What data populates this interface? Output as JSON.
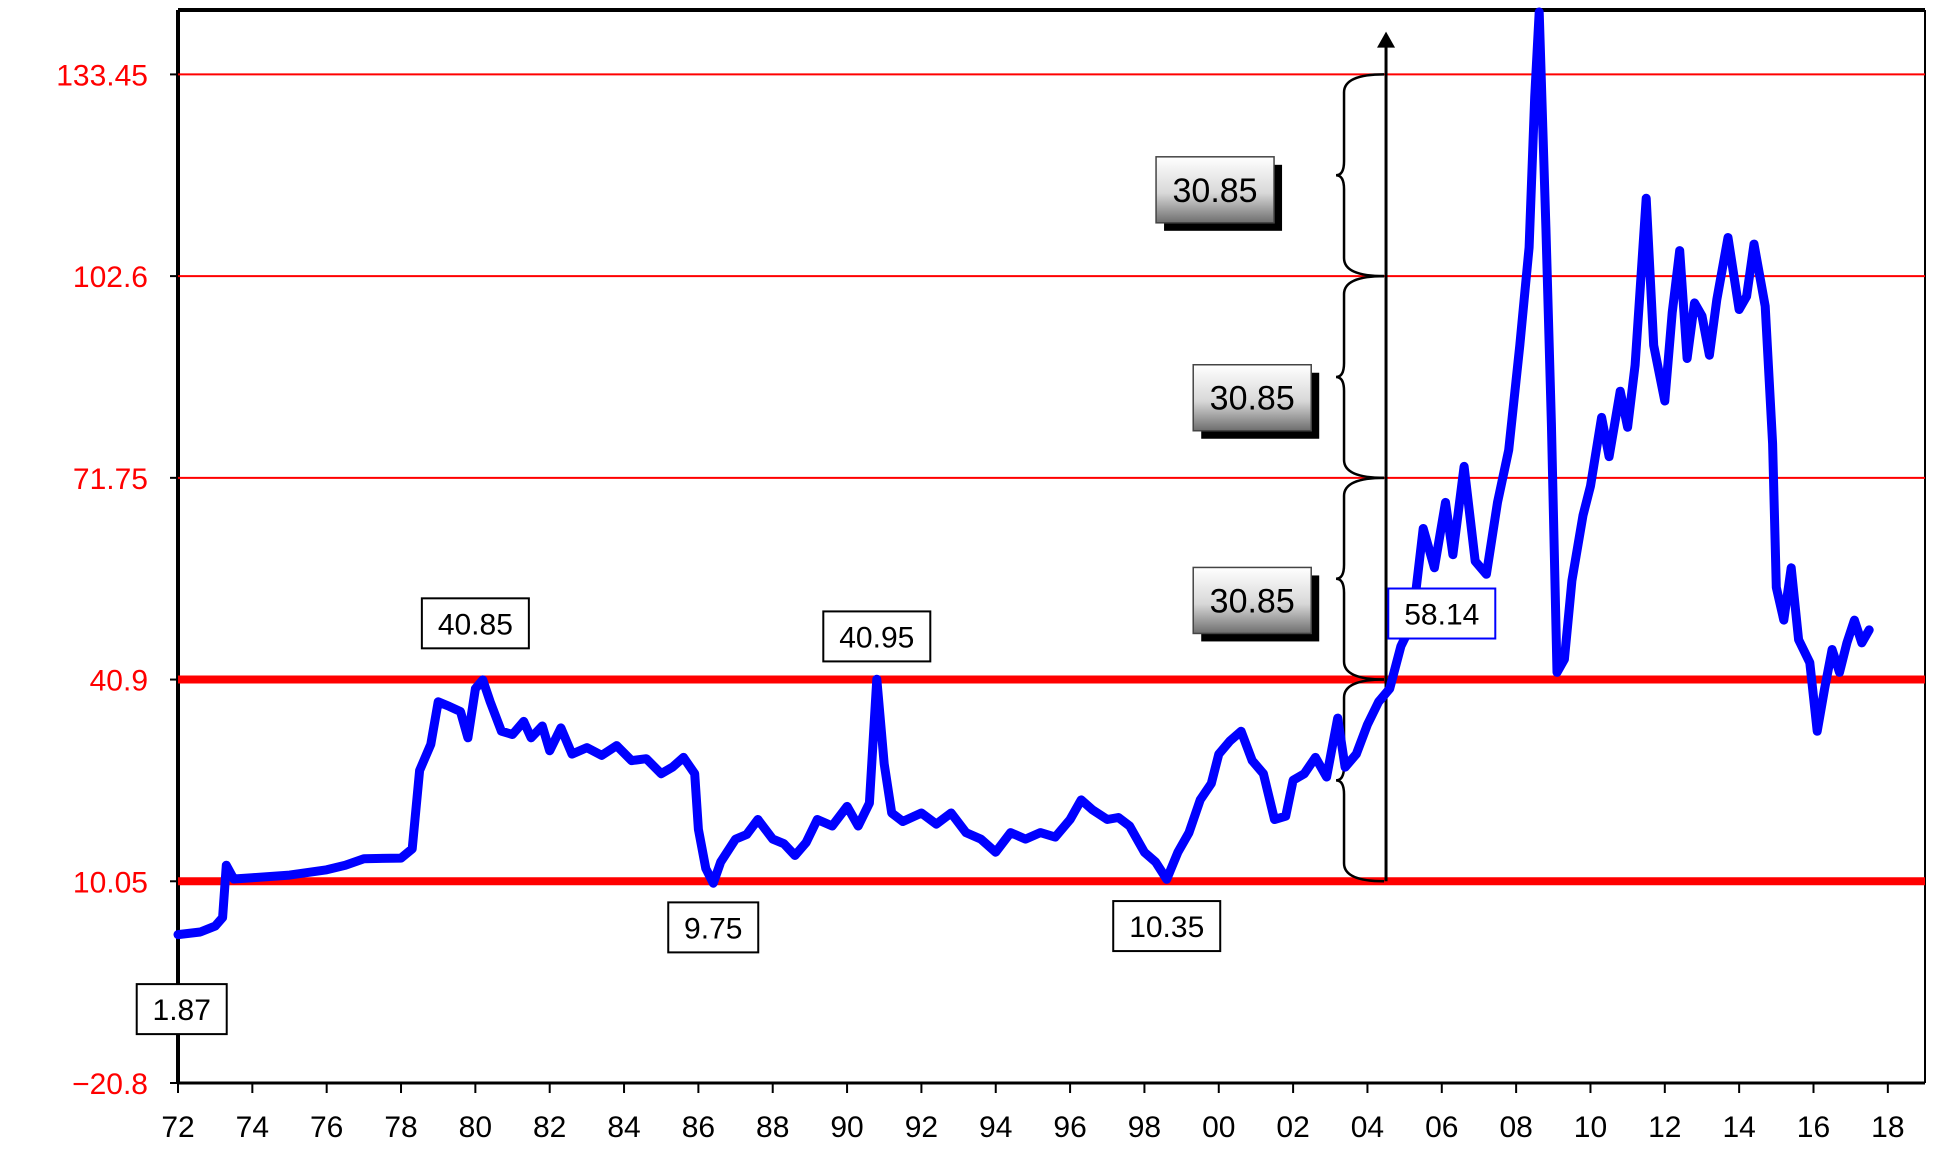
{
  "chart_data": {
    "type": "line",
    "colors": {
      "series": "#0000ff",
      "grid": "#ff0000",
      "frame": "#000000",
      "ytick": "#ff0000"
    },
    "xlim": [
      1972,
      2019
    ],
    "ylim": [
      -20.8,
      143.3
    ],
    "x_ticks": [
      {
        "v": 1972,
        "label": "72"
      },
      {
        "v": 1974,
        "label": "74"
      },
      {
        "v": 1976,
        "label": "76"
      },
      {
        "v": 1978,
        "label": "78"
      },
      {
        "v": 1980,
        "label": "80"
      },
      {
        "v": 1982,
        "label": "82"
      },
      {
        "v": 1984,
        "label": "84"
      },
      {
        "v": 1986,
        "label": "86"
      },
      {
        "v": 1988,
        "label": "88"
      },
      {
        "v": 1990,
        "label": "90"
      },
      {
        "v": 1992,
        "label": "92"
      },
      {
        "v": 1994,
        "label": "94"
      },
      {
        "v": 1996,
        "label": "96"
      },
      {
        "v": 1998,
        "label": "98"
      },
      {
        "v": 2000,
        "label": "00"
      },
      {
        "v": 2002,
        "label": "02"
      },
      {
        "v": 2004,
        "label": "04"
      },
      {
        "v": 2006,
        "label": "06"
      },
      {
        "v": 2008,
        "label": "08"
      },
      {
        "v": 2010,
        "label": "10"
      },
      {
        "v": 2012,
        "label": "12"
      },
      {
        "v": 2014,
        "label": "14"
      },
      {
        "v": 2016,
        "label": "16"
      },
      {
        "v": 2018,
        "label": "18"
      }
    ],
    "y_ticks": [
      {
        "v": 133.45,
        "label": "133.45"
      },
      {
        "v": 102.6,
        "label": "102.6"
      },
      {
        "v": 71.75,
        "label": "71.75"
      },
      {
        "v": 40.9,
        "label": "40.9"
      },
      {
        "v": 10.05,
        "label": "10.05"
      },
      {
        "v": -20.8,
        "label": "−20.8"
      }
    ],
    "hlines": [
      {
        "v": 133.45,
        "emphasis": false
      },
      {
        "v": 102.6,
        "emphasis": false
      },
      {
        "v": 71.75,
        "emphasis": false
      },
      {
        "v": 40.9,
        "emphasis": true
      },
      {
        "v": 10.05,
        "emphasis": true
      }
    ],
    "series": [
      {
        "points": [
          [
            1972.0,
            1.9
          ],
          [
            1972.6,
            2.3
          ],
          [
            1973.0,
            3.2
          ],
          [
            1973.2,
            4.5
          ],
          [
            1973.3,
            12.5
          ],
          [
            1973.5,
            10.4
          ],
          [
            1974.0,
            10.6
          ],
          [
            1975.0,
            11.0
          ],
          [
            1976.0,
            11.8
          ],
          [
            1976.5,
            12.5
          ],
          [
            1977.0,
            13.5
          ],
          [
            1978.0,
            13.6
          ],
          [
            1978.3,
            15.0
          ],
          [
            1978.5,
            27.0
          ],
          [
            1978.8,
            31.0
          ],
          [
            1979.0,
            37.5
          ],
          [
            1979.3,
            36.8
          ],
          [
            1979.6,
            36.0
          ],
          [
            1979.8,
            32.0
          ],
          [
            1980.0,
            39.5
          ],
          [
            1980.2,
            40.85
          ],
          [
            1980.4,
            37.5
          ],
          [
            1980.7,
            33.0
          ],
          [
            1981.0,
            32.5
          ],
          [
            1981.3,
            34.5
          ],
          [
            1981.5,
            32.0
          ],
          [
            1981.8,
            33.8
          ],
          [
            1982.0,
            30.0
          ],
          [
            1982.3,
            33.5
          ],
          [
            1982.6,
            29.5
          ],
          [
            1983.0,
            30.5
          ],
          [
            1983.4,
            29.3
          ],
          [
            1983.8,
            30.8
          ],
          [
            1984.2,
            28.5
          ],
          [
            1984.6,
            28.8
          ],
          [
            1985.0,
            26.5
          ],
          [
            1985.3,
            27.5
          ],
          [
            1985.6,
            29.0
          ],
          [
            1985.9,
            26.5
          ],
          [
            1986.0,
            18.0
          ],
          [
            1986.2,
            12.0
          ],
          [
            1986.4,
            9.75
          ],
          [
            1986.6,
            13.0
          ],
          [
            1987.0,
            16.5
          ],
          [
            1987.3,
            17.2
          ],
          [
            1987.6,
            19.5
          ],
          [
            1988.0,
            16.5
          ],
          [
            1988.3,
            15.8
          ],
          [
            1988.6,
            14.0
          ],
          [
            1988.9,
            16.0
          ],
          [
            1989.2,
            19.5
          ],
          [
            1989.6,
            18.5
          ],
          [
            1990.0,
            21.5
          ],
          [
            1990.3,
            18.5
          ],
          [
            1990.6,
            22.0
          ],
          [
            1990.8,
            40.95
          ],
          [
            1991.0,
            28.0
          ],
          [
            1991.2,
            20.5
          ],
          [
            1991.5,
            19.2
          ],
          [
            1992.0,
            20.5
          ],
          [
            1992.4,
            18.8
          ],
          [
            1992.8,
            20.5
          ],
          [
            1993.2,
            17.5
          ],
          [
            1993.6,
            16.5
          ],
          [
            1994.0,
            14.5
          ],
          [
            1994.4,
            17.5
          ],
          [
            1994.8,
            16.5
          ],
          [
            1995.2,
            17.5
          ],
          [
            1995.6,
            16.8
          ],
          [
            1996.0,
            19.5
          ],
          [
            1996.3,
            22.5
          ],
          [
            1996.6,
            21.0
          ],
          [
            1997.0,
            19.5
          ],
          [
            1997.3,
            19.8
          ],
          [
            1997.6,
            18.5
          ],
          [
            1998.0,
            14.5
          ],
          [
            1998.3,
            13.0
          ],
          [
            1998.6,
            10.35
          ],
          [
            1998.9,
            14.5
          ],
          [
            1999.2,
            17.5
          ],
          [
            1999.5,
            22.5
          ],
          [
            1999.8,
            25.0
          ],
          [
            2000.0,
            29.5
          ],
          [
            2000.3,
            31.5
          ],
          [
            2000.6,
            33.0
          ],
          [
            2000.9,
            28.5
          ],
          [
            2001.2,
            26.5
          ],
          [
            2001.5,
            19.5
          ],
          [
            2001.8,
            20.0
          ],
          [
            2002.0,
            25.5
          ],
          [
            2002.3,
            26.5
          ],
          [
            2002.6,
            29.0
          ],
          [
            2002.9,
            26.0
          ],
          [
            2003.2,
            35.0
          ],
          [
            2003.4,
            27.5
          ],
          [
            2003.7,
            29.5
          ],
          [
            2004.0,
            34.0
          ],
          [
            2004.3,
            37.5
          ],
          [
            2004.6,
            39.5
          ],
          [
            2004.9,
            46.0
          ],
          [
            2005.2,
            49.5
          ],
          [
            2005.5,
            64.0
          ],
          [
            2005.8,
            58.0
          ],
          [
            2006.1,
            68.0
          ],
          [
            2006.3,
            60.0
          ],
          [
            2006.6,
            73.5
          ],
          [
            2006.9,
            59.0
          ],
          [
            2007.2,
            57.0
          ],
          [
            2007.5,
            68.0
          ],
          [
            2007.8,
            76.0
          ],
          [
            2008.1,
            92.0
          ],
          [
            2008.35,
            107.0
          ],
          [
            2008.5,
            130.0
          ],
          [
            2008.62,
            143.0
          ],
          [
            2008.8,
            110.0
          ],
          [
            2008.95,
            80.0
          ],
          [
            2009.1,
            42.0
          ],
          [
            2009.3,
            44.0
          ],
          [
            2009.5,
            56.0
          ],
          [
            2009.8,
            66.0
          ],
          [
            2010.0,
            70.5
          ],
          [
            2010.3,
            81.0
          ],
          [
            2010.5,
            75.0
          ],
          [
            2010.8,
            85.0
          ],
          [
            2011.0,
            79.5
          ],
          [
            2011.2,
            89.0
          ],
          [
            2011.5,
            114.5
          ],
          [
            2011.7,
            92.0
          ],
          [
            2012.0,
            83.5
          ],
          [
            2012.2,
            97.0
          ],
          [
            2012.4,
            106.5
          ],
          [
            2012.6,
            90.0
          ],
          [
            2012.8,
            98.5
          ],
          [
            2013.0,
            96.5
          ],
          [
            2013.2,
            90.5
          ],
          [
            2013.4,
            99.0
          ],
          [
            2013.7,
            108.5
          ],
          [
            2014.0,
            97.5
          ],
          [
            2014.2,
            99.5
          ],
          [
            2014.4,
            107.5
          ],
          [
            2014.7,
            98.0
          ],
          [
            2014.9,
            77.0
          ],
          [
            2015.0,
            55.0
          ],
          [
            2015.2,
            50.0
          ],
          [
            2015.4,
            58.0
          ],
          [
            2015.6,
            47.0
          ],
          [
            2015.9,
            43.5
          ],
          [
            2016.1,
            33.0
          ],
          [
            2016.3,
            39.5
          ],
          [
            2016.5,
            45.5
          ],
          [
            2016.7,
            42.0
          ],
          [
            2016.9,
            46.5
          ],
          [
            2017.1,
            50.0
          ],
          [
            2017.3,
            46.5
          ],
          [
            2017.5,
            48.5
          ]
        ]
      }
    ],
    "labels": [
      {
        "text": "1.87",
        "x": 1972.1,
        "y": -9.5,
        "style": "box"
      },
      {
        "text": "40.85",
        "x": 1980.0,
        "y": 49.5,
        "style": "box"
      },
      {
        "text": "9.75",
        "x": 1986.4,
        "y": 3.0,
        "style": "box"
      },
      {
        "text": "40.95",
        "x": 1990.8,
        "y": 47.5,
        "style": "box"
      },
      {
        "text": "10.35",
        "x": 1998.6,
        "y": 3.2,
        "style": "box"
      },
      {
        "text": "58.14",
        "x": 2006.0,
        "y": 51.0,
        "style": "box-blue"
      }
    ],
    "brace": {
      "x": 2004.5,
      "segments": [
        {
          "from": 10.05,
          "to": 40.9,
          "label": "30.85"
        },
        {
          "from": 40.9,
          "to": 71.75,
          "label": "30.85"
        },
        {
          "from": 71.75,
          "to": 102.6,
          "label": "30.85"
        },
        {
          "from": 102.6,
          "to": 133.45,
          "label": "30.85"
        }
      ],
      "arrow_top": 140.0,
      "buttons": [
        {
          "text": "30.85",
          "x": 1999.9,
          "y": 115.8
        },
        {
          "text": "30.85",
          "x": 2000.9,
          "y": 84.0
        },
        {
          "text": "30.85",
          "x": 2000.9,
          "y": 53.0
        }
      ]
    }
  }
}
